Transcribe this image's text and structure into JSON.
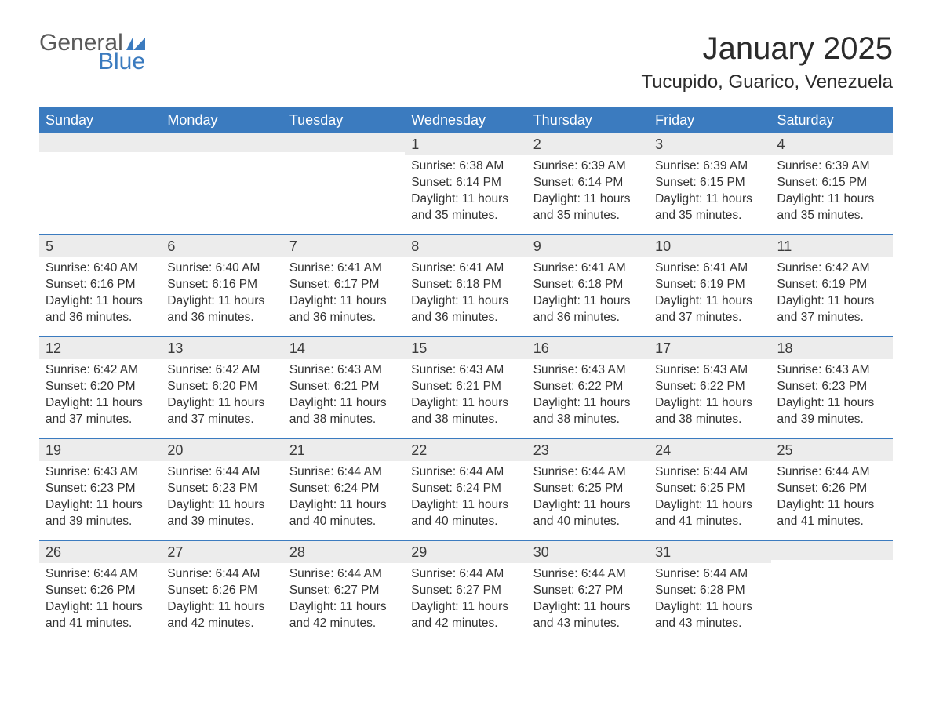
{
  "brand": {
    "word1": "General",
    "word2": "Blue",
    "flag_color": "#3b7bbf",
    "text_gray": "#5a5a5a"
  },
  "title": "January 2025",
  "location": "Tucupido, Guarico, Venezuela",
  "colors": {
    "header_bg": "#3b7bbf",
    "header_text": "#ffffff",
    "daynum_bg": "#ececec",
    "body_text": "#333333",
    "rule": "#3b7bbf"
  },
  "weekdays": [
    "Sunday",
    "Monday",
    "Tuesday",
    "Wednesday",
    "Thursday",
    "Friday",
    "Saturday"
  ],
  "labels": {
    "sunrise": "Sunrise:",
    "sunset": "Sunset:",
    "daylight": "Daylight:",
    "and": "and"
  },
  "weeks": [
    [
      null,
      null,
      null,
      {
        "d": "1",
        "sr": "6:38 AM",
        "ss": "6:14 PM",
        "dl": "11 hours and 35 minutes."
      },
      {
        "d": "2",
        "sr": "6:39 AM",
        "ss": "6:14 PM",
        "dl": "11 hours and 35 minutes."
      },
      {
        "d": "3",
        "sr": "6:39 AM",
        "ss": "6:15 PM",
        "dl": "11 hours and 35 minutes."
      },
      {
        "d": "4",
        "sr": "6:39 AM",
        "ss": "6:15 PM",
        "dl": "11 hours and 35 minutes."
      }
    ],
    [
      {
        "d": "5",
        "sr": "6:40 AM",
        "ss": "6:16 PM",
        "dl": "11 hours and 36 minutes."
      },
      {
        "d": "6",
        "sr": "6:40 AM",
        "ss": "6:16 PM",
        "dl": "11 hours and 36 minutes."
      },
      {
        "d": "7",
        "sr": "6:41 AM",
        "ss": "6:17 PM",
        "dl": "11 hours and 36 minutes."
      },
      {
        "d": "8",
        "sr": "6:41 AM",
        "ss": "6:18 PM",
        "dl": "11 hours and 36 minutes."
      },
      {
        "d": "9",
        "sr": "6:41 AM",
        "ss": "6:18 PM",
        "dl": "11 hours and 36 minutes."
      },
      {
        "d": "10",
        "sr": "6:41 AM",
        "ss": "6:19 PM",
        "dl": "11 hours and 37 minutes."
      },
      {
        "d": "11",
        "sr": "6:42 AM",
        "ss": "6:19 PM",
        "dl": "11 hours and 37 minutes."
      }
    ],
    [
      {
        "d": "12",
        "sr": "6:42 AM",
        "ss": "6:20 PM",
        "dl": "11 hours and 37 minutes."
      },
      {
        "d": "13",
        "sr": "6:42 AM",
        "ss": "6:20 PM",
        "dl": "11 hours and 37 minutes."
      },
      {
        "d": "14",
        "sr": "6:43 AM",
        "ss": "6:21 PM",
        "dl": "11 hours and 38 minutes."
      },
      {
        "d": "15",
        "sr": "6:43 AM",
        "ss": "6:21 PM",
        "dl": "11 hours and 38 minutes."
      },
      {
        "d": "16",
        "sr": "6:43 AM",
        "ss": "6:22 PM",
        "dl": "11 hours and 38 minutes."
      },
      {
        "d": "17",
        "sr": "6:43 AM",
        "ss": "6:22 PM",
        "dl": "11 hours and 38 minutes."
      },
      {
        "d": "18",
        "sr": "6:43 AM",
        "ss": "6:23 PM",
        "dl": "11 hours and 39 minutes."
      }
    ],
    [
      {
        "d": "19",
        "sr": "6:43 AM",
        "ss": "6:23 PM",
        "dl": "11 hours and 39 minutes."
      },
      {
        "d": "20",
        "sr": "6:44 AM",
        "ss": "6:23 PM",
        "dl": "11 hours and 39 minutes."
      },
      {
        "d": "21",
        "sr": "6:44 AM",
        "ss": "6:24 PM",
        "dl": "11 hours and 40 minutes."
      },
      {
        "d": "22",
        "sr": "6:44 AM",
        "ss": "6:24 PM",
        "dl": "11 hours and 40 minutes."
      },
      {
        "d": "23",
        "sr": "6:44 AM",
        "ss": "6:25 PM",
        "dl": "11 hours and 40 minutes."
      },
      {
        "d": "24",
        "sr": "6:44 AM",
        "ss": "6:25 PM",
        "dl": "11 hours and 41 minutes."
      },
      {
        "d": "25",
        "sr": "6:44 AM",
        "ss": "6:26 PM",
        "dl": "11 hours and 41 minutes."
      }
    ],
    [
      {
        "d": "26",
        "sr": "6:44 AM",
        "ss": "6:26 PM",
        "dl": "11 hours and 41 minutes."
      },
      {
        "d": "27",
        "sr": "6:44 AM",
        "ss": "6:26 PM",
        "dl": "11 hours and 42 minutes."
      },
      {
        "d": "28",
        "sr": "6:44 AM",
        "ss": "6:27 PM",
        "dl": "11 hours and 42 minutes."
      },
      {
        "d": "29",
        "sr": "6:44 AM",
        "ss": "6:27 PM",
        "dl": "11 hours and 42 minutes."
      },
      {
        "d": "30",
        "sr": "6:44 AM",
        "ss": "6:27 PM",
        "dl": "11 hours and 43 minutes."
      },
      {
        "d": "31",
        "sr": "6:44 AM",
        "ss": "6:28 PM",
        "dl": "11 hours and 43 minutes."
      },
      null
    ]
  ]
}
